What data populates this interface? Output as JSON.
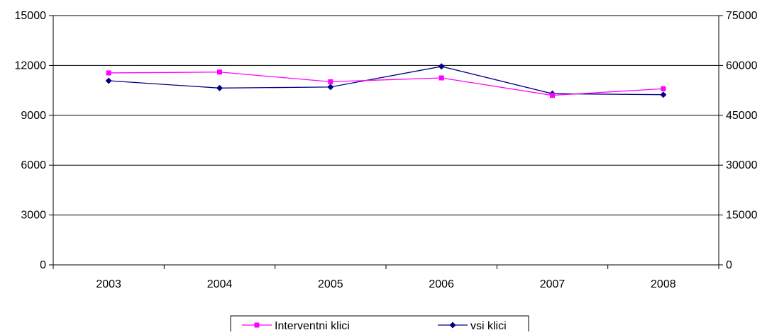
{
  "chart_data": {
    "type": "line",
    "categories": [
      "2003",
      "2004",
      "2005",
      "2006",
      "2007",
      "2008"
    ],
    "y_left": {
      "range": [
        0,
        15000
      ],
      "ticks": [
        0,
        3000,
        6000,
        9000,
        12000,
        15000
      ],
      "tick_labels": [
        "0",
        "3000",
        "6000",
        "9000",
        "12000",
        "15000"
      ]
    },
    "y_right": {
      "range": [
        0,
        75000
      ],
      "ticks": [
        0,
        15000,
        30000,
        45000,
        60000,
        75000
      ],
      "tick_labels": [
        "0",
        "15000",
        "30000",
        "45000",
        "60000",
        "75000"
      ]
    },
    "gridlines": "horizontal",
    "legend_position": "bottom",
    "series": [
      {
        "name": "Interventni klici",
        "axis": "left",
        "color": "#ff00ff",
        "marker": "square",
        "values": [
          11550,
          11600,
          11020,
          11250,
          10200,
          10600
        ]
      },
      {
        "name": "vsi klici",
        "axis": "right",
        "color": "#000080",
        "marker": "diamond",
        "values": [
          55400,
          53200,
          53500,
          59700,
          51500,
          51200
        ]
      }
    ]
  }
}
